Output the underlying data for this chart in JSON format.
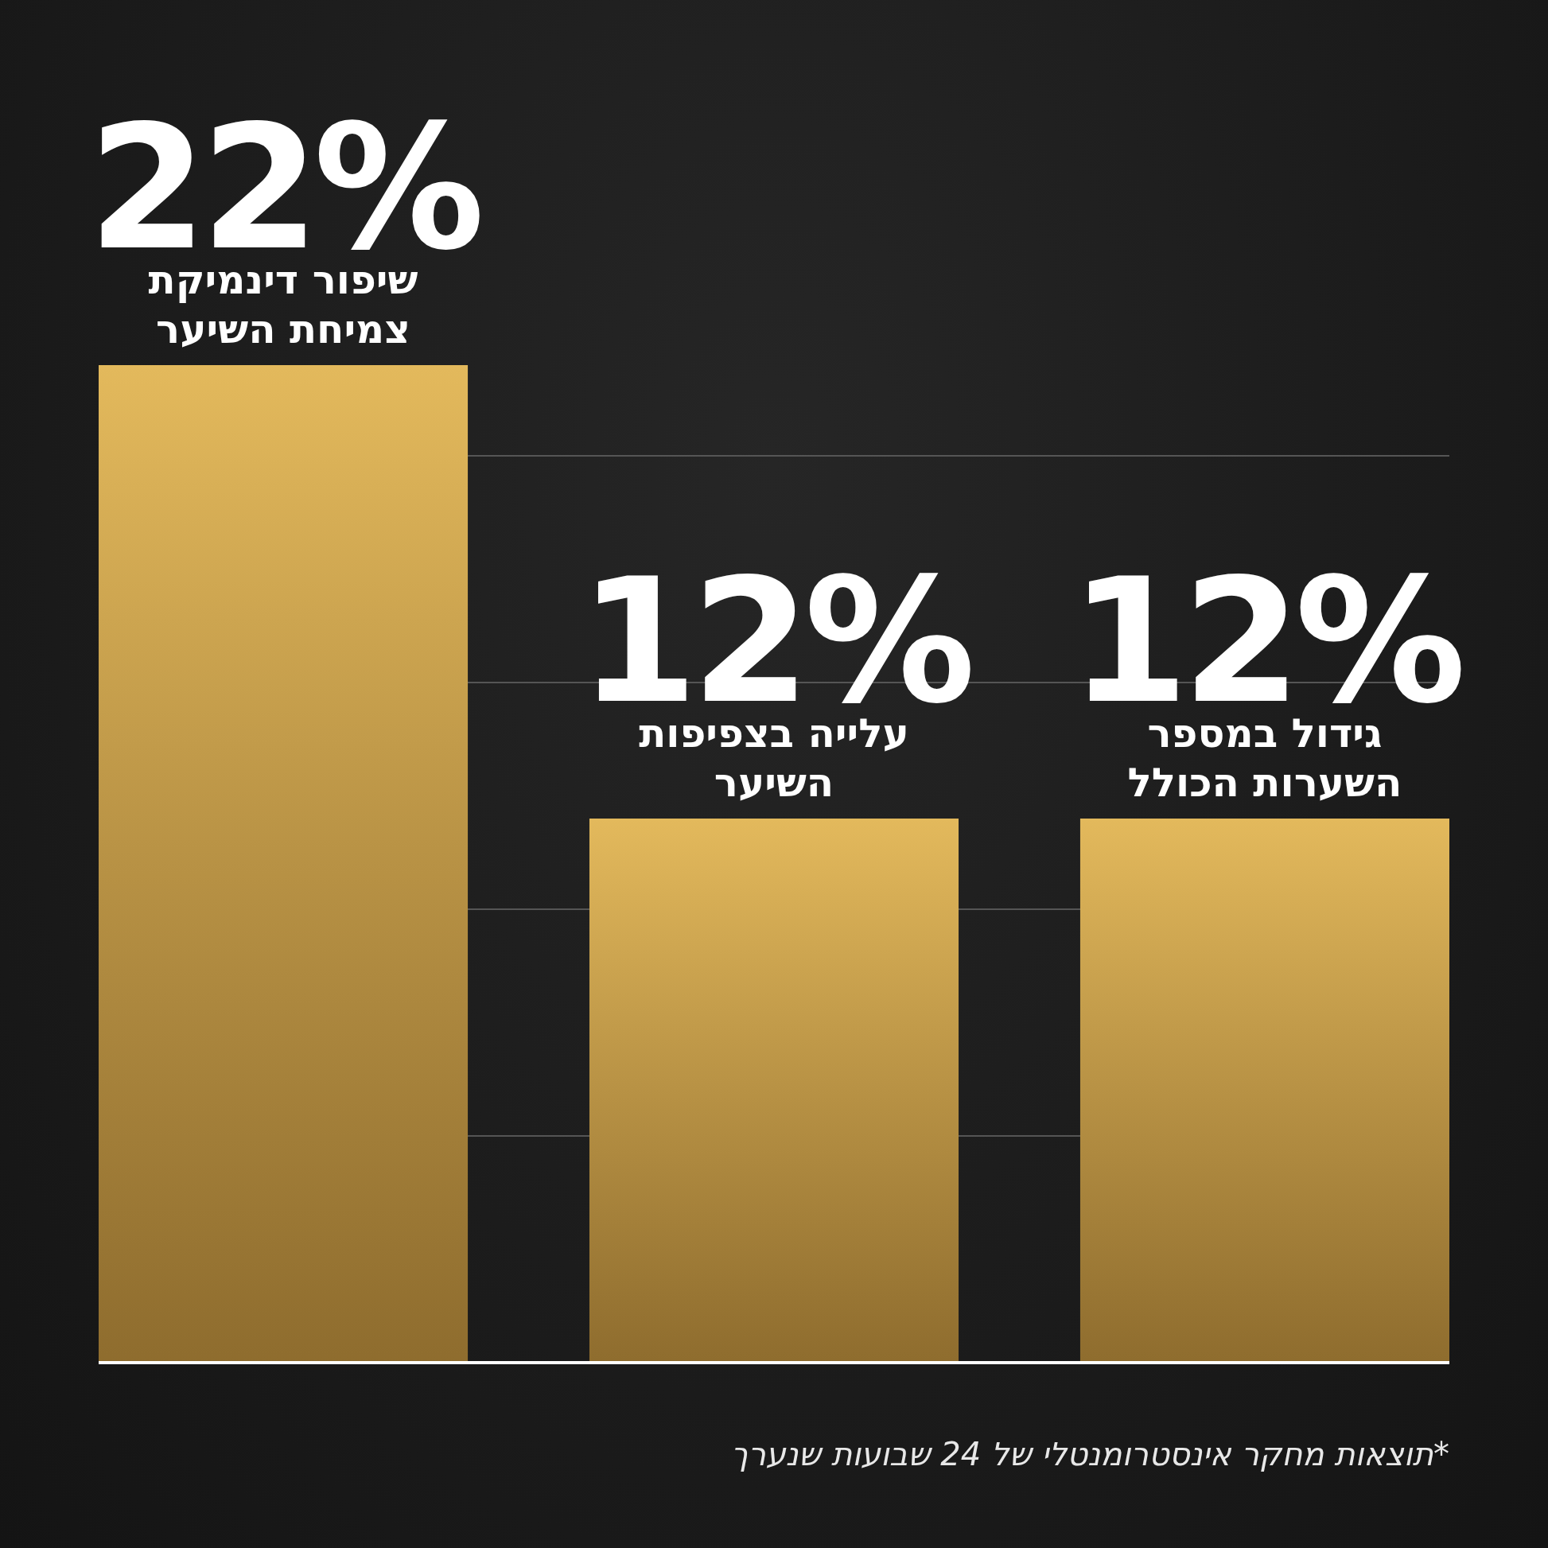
{
  "chart_data": {
    "type": "bar",
    "categories": [
      "שיפור דינמיקת צמיחת השיער",
      "עלייה בצפיפות השיער",
      "גידול במספר השערות הכולל"
    ],
    "values": [
      22,
      12,
      12
    ],
    "value_labels": [
      "22%",
      "12%",
      "12%"
    ],
    "color": "#e3b95c",
    "yticks": [
      {
        "value": 5,
        "label": null
      },
      {
        "value": 10,
        "label": null
      },
      {
        "value": 15,
        "label": null
      },
      {
        "value": 20,
        "label": null
      }
    ],
    "grid": "y",
    "annotations": [
      "*תוצאות מחקר אינסטרומנטלי של 24 שבועות שנערך"
    ]
  }
}
